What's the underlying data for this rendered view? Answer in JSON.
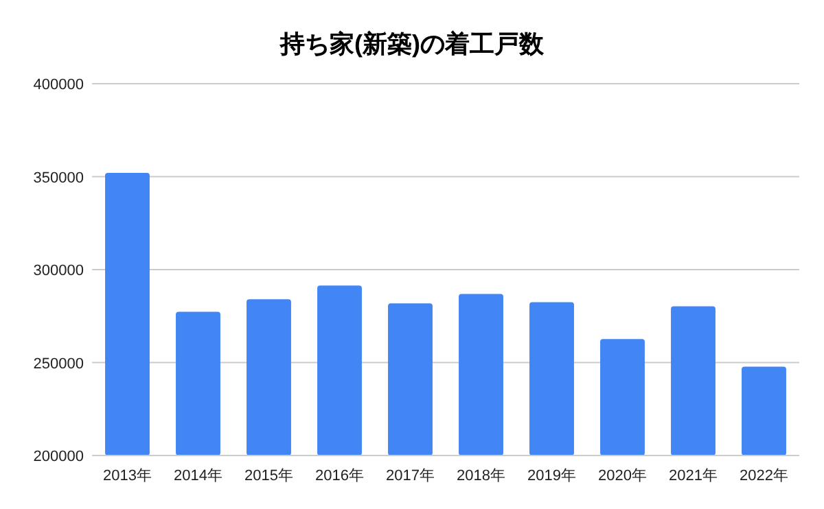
{
  "chart_data": {
    "type": "bar",
    "title": "持ち家(新築)の着工戸数",
    "categories": [
      "2013年",
      "2014年",
      "2015年",
      "2016年",
      "2017年",
      "2018年",
      "2019年",
      "2020年",
      "2021年",
      "2022年"
    ],
    "values": [
      352000,
      277300,
      284000,
      291400,
      281800,
      286900,
      282500,
      262600,
      280300,
      247800
    ],
    "color": "#4285f4",
    "ylim": [
      200000,
      400000
    ],
    "yticks": [
      200000,
      250000,
      300000,
      350000,
      400000
    ],
    "grid": true
  }
}
